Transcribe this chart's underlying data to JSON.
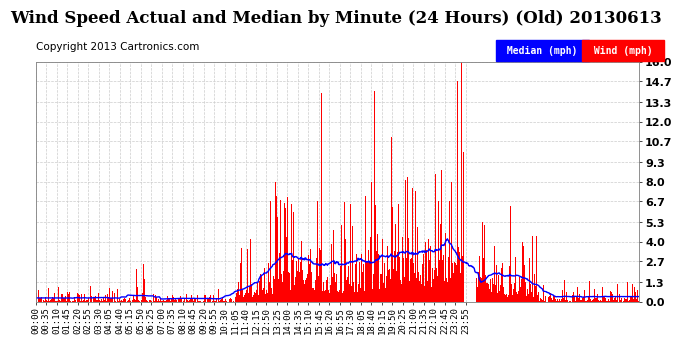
{
  "title": "Wind Speed Actual and Median by Minute (24 Hours) (Old) 20130613",
  "copyright": "Copyright 2013 Cartronics.com",
  "ylabel_right_ticks": [
    0.0,
    1.3,
    2.7,
    4.0,
    5.3,
    6.7,
    8.0,
    9.3,
    10.7,
    12.0,
    13.3,
    14.7,
    16.0
  ],
  "ylim": [
    0.0,
    16.0
  ],
  "bg_color": "#ffffff",
  "grid_color": "#cccccc",
  "bar_color": "#ff0000",
  "line_color": "#0000ff",
  "median_legend_bg": "#0000ff",
  "wind_legend_bg": "#ff0000",
  "legend_text_color": "#ffffff",
  "title_fontsize": 12,
  "copyright_fontsize": 7.5,
  "tick_label_fontsize": 6.5,
  "total_minutes": 1440,
  "x_tick_interval": 25,
  "x_tick_labels": [
    "00:00",
    "00:35",
    "01:10",
    "01:45",
    "02:20",
    "02:55",
    "03:30",
    "04:05",
    "04:40",
    "05:15",
    "05:50",
    "06:25",
    "07:00",
    "07:35",
    "08:10",
    "08:45",
    "09:20",
    "09:55",
    "10:30",
    "11:05",
    "11:40",
    "12:15",
    "12:50",
    "13:25",
    "14:00",
    "14:35",
    "15:10",
    "15:45",
    "16:20",
    "16:55",
    "17:30",
    "18:05",
    "18:40",
    "19:15",
    "19:50",
    "20:25",
    "21:00",
    "21:35",
    "22:10",
    "22:45",
    "23:20",
    "23:55"
  ]
}
